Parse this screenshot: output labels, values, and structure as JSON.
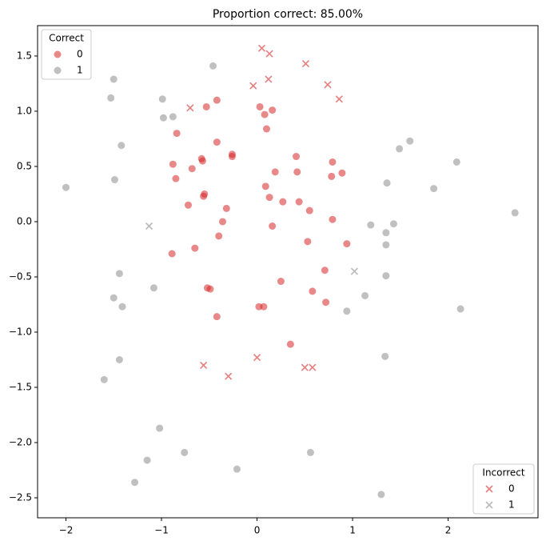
{
  "chart_data": {
    "type": "scatter",
    "title": "Proportion correct: 85.00%",
    "xlim": [
      -2.297,
      2.941
    ],
    "ylim": [
      -2.681,
      1.775
    ],
    "xticks": [
      {
        "value": -2,
        "label": "−2"
      },
      {
        "value": -1,
        "label": "−1"
      },
      0,
      1,
      2
    ],
    "yticks": [
      {
        "value": -2.5,
        "label": "−2.5"
      },
      {
        "value": -2,
        "label": "−2.0"
      },
      {
        "value": -1.5,
        "label": "−1.5"
      },
      {
        "value": -1,
        "label": "−1.0"
      },
      {
        "value": -0.5,
        "label": "−0.5"
      },
      {
        "value": 0,
        "label": "0.0"
      },
      0.5,
      {
        "value": 1,
        "label": "1.0"
      },
      1.5
    ],
    "legends": [
      {
        "title": "Correct",
        "loc": "upper left"
      },
      {
        "title": "Incorrect",
        "loc": "lower right"
      }
    ],
    "series": [
      {
        "name": "0",
        "legend": 0,
        "marker": "o",
        "color": "#d62728",
        "x": [
          -0.53,
          -0.42,
          0.03,
          0.08,
          0.16,
          0.1,
          -0.84,
          -0.42,
          -0.58,
          -0.57,
          -0.26,
          -0.26,
          -0.88,
          -0.68,
          -0.85,
          0.41,
          0.79,
          0.19,
          0.42,
          0.89,
          0.78,
          0.09,
          0.13,
          0.27,
          0.44,
          -0.55,
          -0.56,
          -0.32,
          -0.72,
          0.55,
          -0.36,
          0.79,
          0.16,
          -0.4,
          0.53,
          0.94,
          -0.89,
          -0.65,
          0.71,
          0.25,
          -0.52,
          -0.49,
          0.58,
          0.72,
          0.02,
          0.07,
          -0.42,
          0.35
        ],
        "y": [
          1.04,
          1.1,
          1.04,
          0.97,
          1.01,
          0.84,
          0.8,
          0.72,
          0.57,
          0.55,
          0.61,
          0.59,
          0.52,
          0.48,
          0.39,
          0.59,
          0.54,
          0.45,
          0.45,
          0.44,
          0.41,
          0.32,
          0.22,
          0.18,
          0.18,
          0.25,
          0.23,
          0.12,
          0.15,
          0.1,
          0.0,
          0.02,
          -0.04,
          -0.13,
          -0.18,
          -0.2,
          -0.29,
          -0.24,
          -0.44,
          -0.54,
          -0.6,
          -0.61,
          -0.63,
          -0.73,
          -0.77,
          -0.77,
          -0.86,
          -1.11
        ]
      },
      {
        "name": "1",
        "legend": 0,
        "marker": "o",
        "color": "#8c8c8c",
        "x": [
          -0.46,
          -1.5,
          -1.53,
          -0.99,
          -0.98,
          -0.88,
          -1.42,
          -1.49,
          -2.0,
          1.6,
          1.49,
          2.09,
          1.36,
          1.85,
          2.7,
          1.19,
          1.43,
          1.35,
          1.35,
          -1.44,
          1.35,
          -1.08,
          -1.5,
          -1.41,
          1.13,
          0.94,
          2.13,
          1.34,
          -1.44,
          -1.6,
          -1.02,
          -0.76,
          0.56,
          -1.15,
          -0.21,
          -1.28,
          1.3
        ],
        "y": [
          1.41,
          1.29,
          1.12,
          1.11,
          0.94,
          0.95,
          0.69,
          0.38,
          0.31,
          0.73,
          0.66,
          0.54,
          0.35,
          0.3,
          0.08,
          -0.03,
          -0.02,
          -0.1,
          -0.21,
          -0.47,
          -0.49,
          -0.6,
          -0.69,
          -0.77,
          -0.67,
          -0.81,
          -0.79,
          -1.22,
          -1.25,
          -1.43,
          -1.87,
          -2.09,
          -2.09,
          -2.16,
          -2.24,
          -2.36,
          -2.47
        ]
      },
      {
        "name": "0",
        "legend": 1,
        "marker": "x",
        "color": "#d62728",
        "x": [
          0.05,
          0.13,
          0.51,
          -0.04,
          0.12,
          0.74,
          0.86,
          -0.7,
          -0.56,
          -0.3,
          0.0,
          0.5,
          0.58
        ],
        "y": [
          1.57,
          1.52,
          1.43,
          1.23,
          1.29,
          1.24,
          1.11,
          1.03,
          -1.3,
          -1.4,
          -1.23,
          -1.32,
          -1.32
        ]
      },
      {
        "name": "1",
        "legend": 1,
        "marker": "x",
        "color": "#8c8c8c",
        "x": [
          -1.13,
          1.02
        ],
        "y": [
          -0.04,
          -0.45
        ]
      }
    ]
  }
}
